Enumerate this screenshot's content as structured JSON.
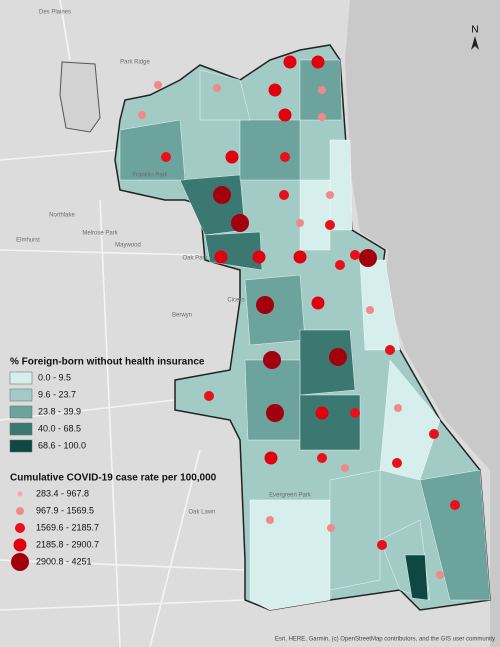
{
  "map": {
    "compass": "N",
    "legend_foreign": {
      "title": "% Foreign-born without health insurance",
      "items": [
        {
          "label": "0.0 - 9.5",
          "color": "#d6eeec"
        },
        {
          "label": "9.6 - 23.7",
          "color": "#a2cbc6"
        },
        {
          "label": "23.8 - 39.9",
          "color": "#6c a39d"
        },
        {
          "label": "40.0 - 68.5",
          "color": "#3b7872"
        },
        {
          "label": "68.6 - 100.0",
          "color": "#0d4842"
        }
      ]
    },
    "legend_covid": {
      "title": "Cumulative COVID-19 case rate per 100,000",
      "items": [
        {
          "label": "283.4 - 967.8",
          "color": "#f6a8a8"
        },
        {
          "label": "967.9 - 1569.5",
          "color": "#f08a8a"
        },
        {
          "label": "1569.6 - 2185.7",
          "color": "#e8101a"
        },
        {
          "label": "2185.8 - 2900.7",
          "color": "#e0000e"
        },
        {
          "label": "2900.8 - 4251",
          "color": "#a3000e"
        }
      ]
    },
    "places": [
      "Des Plaines",
      "Park Ridge",
      "Elmhurst",
      "Northlake",
      "Melrose Park",
      "Maywood",
      "Franklin Park",
      "Oak Park",
      "Cicero",
      "Berwyn",
      "Oak Lawn",
      "Evergreen Park"
    ],
    "attribution": "Esri, HERE, Garmin, (c) OpenStreetMap contributors, and the GIS user community"
  }
}
